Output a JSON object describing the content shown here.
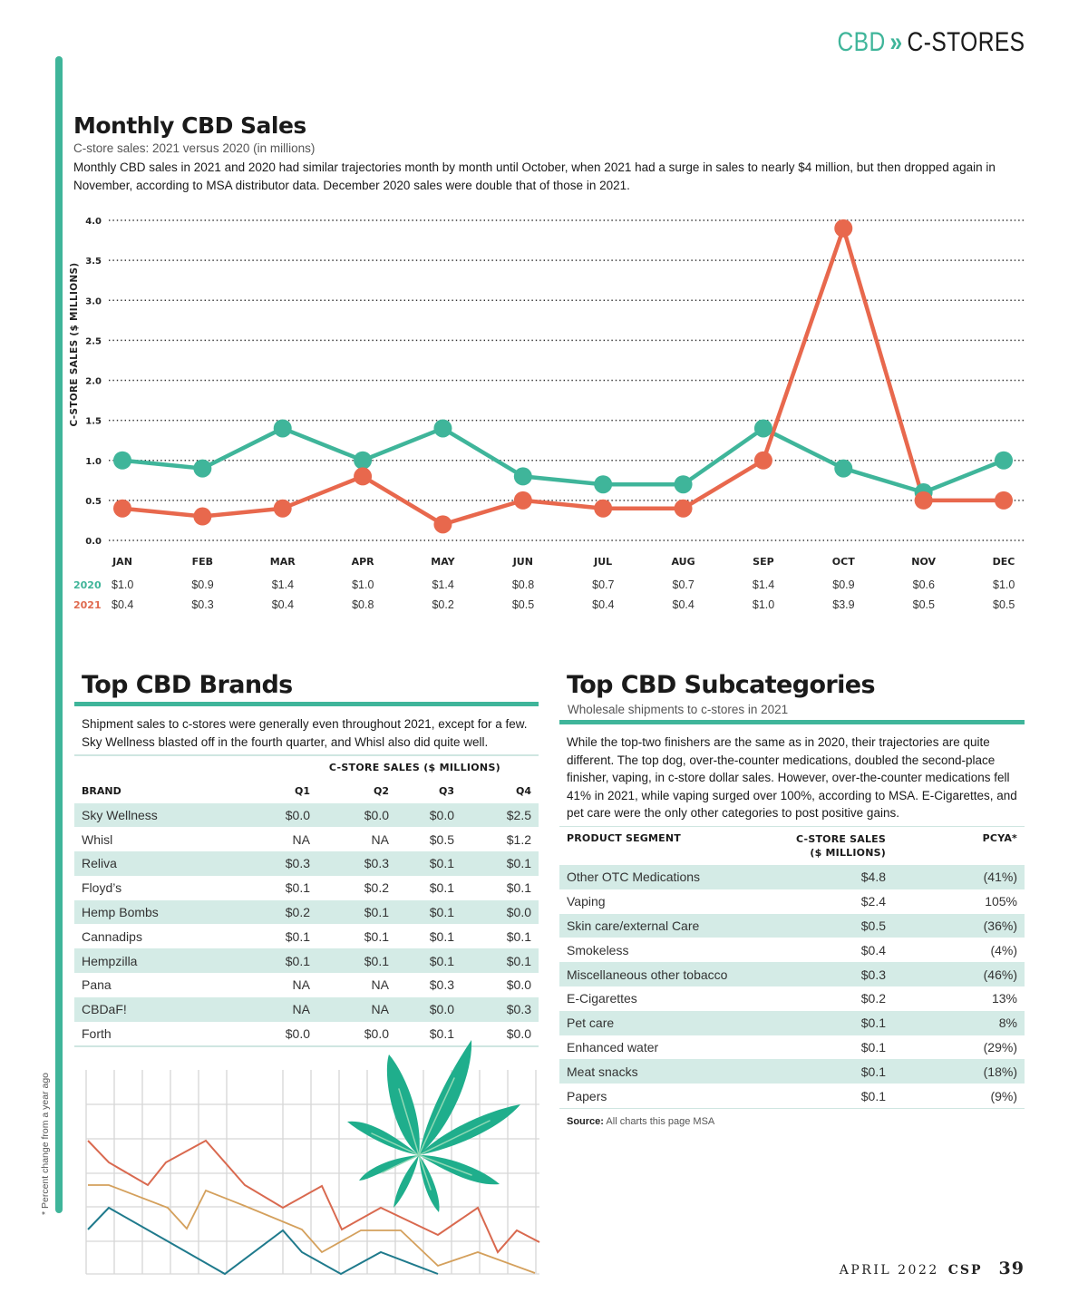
{
  "header": {
    "section_left": "CBD",
    "section_sep": "»",
    "section_right": "C-STORES"
  },
  "monthly": {
    "title": "Monthly CBD Sales",
    "subtitle": "C-store sales: 2021 versus 2020 (in millions)",
    "description": "Monthly CBD sales in 2021 and 2020 had similar trajectories month by month until October, when 2021 had a surge in sales to nearly $4 million, but then dropped again in November, according to MSA distributor data. December 2020 sales were double that of those in 2021."
  },
  "chart_data": {
    "type": "line",
    "title": "Monthly CBD Sales",
    "subtitle": "C-store sales: 2021 versus 2020 (in millions)",
    "xlabel": "",
    "ylabel": "C-STORE SALES ($ MILLIONS)",
    "ylim": [
      0,
      4.0
    ],
    "yticks": [
      "0.0",
      "0.5",
      "1.0",
      "1.5",
      "2.0",
      "2.5",
      "3.0",
      "3.5",
      "4.0"
    ],
    "grid": "horizontal dotted",
    "categories": [
      "JAN",
      "FEB",
      "MAR",
      "APR",
      "MAY",
      "JUN",
      "JUL",
      "AUG",
      "SEP",
      "OCT",
      "NOV",
      "DEC"
    ],
    "series": [
      {
        "name": "2020",
        "color": "#3fb59a",
        "values": [
          1.0,
          0.9,
          1.4,
          1.0,
          1.4,
          0.8,
          0.7,
          0.7,
          1.4,
          0.9,
          0.6,
          1.0
        ],
        "labels": [
          "$1.0",
          "$0.9",
          "$1.4",
          "$1.0",
          "$1.4",
          "$0.8",
          "$0.7",
          "$0.7",
          "$1.4",
          "$0.9",
          "$0.6",
          "$1.0"
        ]
      },
      {
        "name": "2021",
        "color": "#e8684d",
        "values": [
          0.4,
          0.3,
          0.4,
          0.8,
          0.2,
          0.5,
          0.4,
          0.4,
          1.0,
          3.9,
          0.5,
          0.5
        ],
        "labels": [
          "$0.4",
          "$0.3",
          "$0.4",
          "$0.8",
          "$0.2",
          "$0.5",
          "$0.4",
          "$0.4",
          "$1.0",
          "$3.9",
          "$0.5",
          "$0.5"
        ]
      }
    ],
    "legend": "table below x-axis"
  },
  "brands": {
    "title": "Top CBD Brands",
    "description": "Shipment sales to c-stores were generally even throughout 2021, except for a few. Sky Wellness blasted off in the fourth quarter, and Whisl also did quite well.",
    "group_header": "C-STORE SALES  ($ MILLIONS)",
    "columns": [
      "BRAND",
      "Q1",
      "Q2",
      "Q3",
      "Q4"
    ],
    "rows": [
      {
        "brand": "Sky Wellness",
        "q1": "$0.0",
        "q2": "$0.0",
        "q3": "$0.0",
        "q4": "$2.5"
      },
      {
        "brand": "Whisl",
        "q1": "NA",
        "q2": "NA",
        "q3": "$0.5",
        "q4": "$1.2"
      },
      {
        "brand": "Reliva",
        "q1": "$0.3",
        "q2": "$0.3",
        "q3": "$0.1",
        "q4": "$0.1"
      },
      {
        "brand": "Floyd’s",
        "q1": "$0.1",
        "q2": "$0.2",
        "q3": "$0.1",
        "q4": "$0.1"
      },
      {
        "brand": "Hemp Bombs",
        "q1": "$0.2",
        "q2": "$0.1",
        "q3": "$0.1",
        "q4": "$0.0"
      },
      {
        "brand": "Cannadips",
        "q1": "$0.1",
        "q2": "$0.1",
        "q3": "$0.1",
        "q4": "$0.1"
      },
      {
        "brand": "Hempzilla",
        "q1": "$0.1",
        "q2": "$0.1",
        "q3": "$0.1",
        "q4": "$0.1"
      },
      {
        "brand": "Pana",
        "q1": "NA",
        "q2": "NA",
        "q3": "$0.3",
        "q4": "$0.0"
      },
      {
        "brand": "CBDaF!",
        "q1": "NA",
        "q2": "NA",
        "q3": "$0.0",
        "q4": "$0.3"
      },
      {
        "brand": "Forth",
        "q1": "$0.0",
        "q2": "$0.0",
        "q3": "$0.1",
        "q4": "$0.0"
      }
    ]
  },
  "subcategories": {
    "title": "Top CBD Subcategories",
    "subtitle": "Wholesale shipments to c-stores in 2021",
    "description": "While the top-two finishers are the same as in 2020, their trajectories are quite different. The top dog, over-the-counter medications, doubled the second-place finisher, vaping, in c-store dollar sales. However, over-the-counter medications fell 41% in 2021, while vaping surged over 100%, according to MSA. E-Cigarettes, and pet care were the only other categories to post positive gains.",
    "columns": {
      "segment": "PRODUCT SEGMENT",
      "sales_line1": "C-STORE SALES",
      "sales_line2": "($ MILLIONS)",
      "pcya": "PCYA*"
    },
    "rows": [
      {
        "segment": "Other OTC Medications",
        "sales": "$4.8",
        "pcya": "(41%)"
      },
      {
        "segment": "Vaping",
        "sales": "$2.4",
        "pcya": "105%"
      },
      {
        "segment": "Skin care/external Care",
        "sales": "$0.5",
        "pcya": "(36%)"
      },
      {
        "segment": "Smokeless",
        "sales": "$0.4",
        "pcya": "(4%)"
      },
      {
        "segment": "Miscellaneous other tobacco",
        "sales": "$0.3",
        "pcya": "(46%)"
      },
      {
        "segment": "E-Cigarettes",
        "sales": "$0.2",
        "pcya": "13%"
      },
      {
        "segment": "Pet care",
        "sales": "$0.1",
        "pcya": "8%"
      },
      {
        "segment": "Enhanced water",
        "sales": "$0.1",
        "pcya": "(29%)"
      },
      {
        "segment": "Meat snacks",
        "sales": "$0.1",
        "pcya": "(18%)"
      },
      {
        "segment": "Papers",
        "sales": "$0.1",
        "pcya": "(9%)"
      }
    ],
    "source_label": "Source:",
    "source_text": "All charts this page MSA"
  },
  "footnote": "* Percent change from a year ago",
  "folio": {
    "date": "APRIL 2022",
    "magazine": "CSP",
    "page": "39"
  },
  "colors": {
    "accent": "#3fb59a",
    "series_2020": "#3fb59a",
    "series_2021": "#e8684d",
    "row_shade": "#d4ebe6"
  }
}
